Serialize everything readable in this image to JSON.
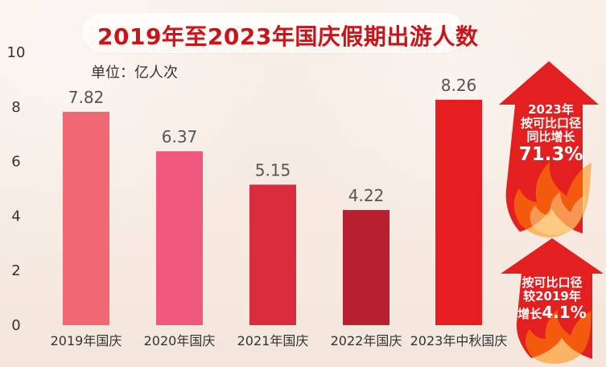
{
  "header": {
    "title": "2019年至2023年国庆假期出游人数"
  },
  "chart_data": {
    "type": "bar",
    "title": "2019年至2023年国庆假期出游人数",
    "unit_label": "单位：亿人次",
    "categories": [
      "2019年国庆",
      "2020年国庆",
      "2021年国庆",
      "2022年国庆",
      "2023年中秋国庆"
    ],
    "values": [
      7.82,
      6.37,
      5.15,
      4.22,
      8.26
    ],
    "value_labels": [
      "7.82",
      "6.37",
      "5.15",
      "4.22",
      "8.26"
    ],
    "ylim": [
      0,
      10
    ],
    "yticks": [
      "0",
      "2",
      "4",
      "6",
      "8",
      "10"
    ],
    "colors": [
      "#f06774",
      "#f0587d",
      "#d92c3d",
      "#b81f2f",
      "#e61e22"
    ]
  },
  "badges": {
    "top": {
      "line1": "2023年",
      "line2": "按可比口径",
      "line3": "同比增长",
      "value": "71.3%"
    },
    "bottom": {
      "line1": "按可比口径",
      "line2": "较2019年",
      "line3_prefix": "增长",
      "value": "4.1%"
    }
  }
}
